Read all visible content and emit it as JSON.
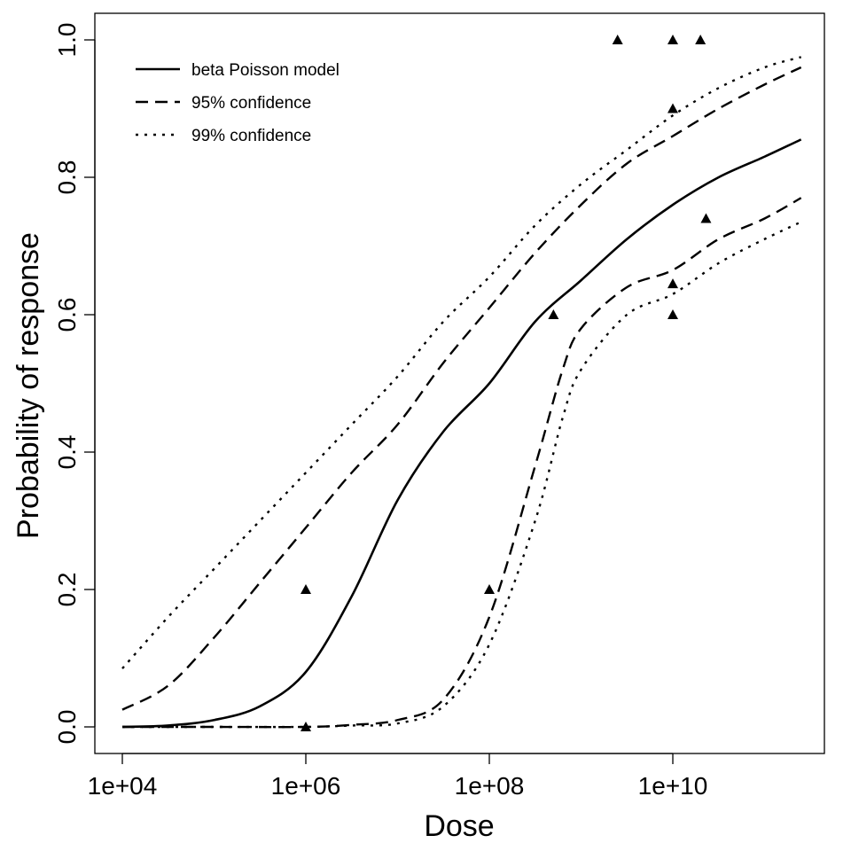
{
  "chart_data": {
    "type": "line",
    "title": "",
    "xlabel": "Dose",
    "ylabel": "Probability of response",
    "xscale": "log",
    "xlim": [
      5000,
      600000000000
    ],
    "ylim": [
      -0.04,
      1.04
    ],
    "xticks": [
      {
        "value": 10000.0,
        "label": "1e+04"
      },
      {
        "value": 1000000.0,
        "label": "1e+06"
      },
      {
        "value": 100000000.0,
        "label": "1e+08"
      },
      {
        "value": 10000000000.0,
        "label": "1e+10"
      }
    ],
    "yticks": [
      {
        "value": 0,
        "label": "0.0"
      },
      {
        "value": 0.2,
        "label": "0.2"
      },
      {
        "value": 0.4,
        "label": "0.4"
      },
      {
        "value": 0.6,
        "label": "0.6"
      },
      {
        "value": 0.8,
        "label": "0.8"
      },
      {
        "value": 1.0,
        "label": "1.0"
      }
    ],
    "grid": false,
    "legend_position": "top-left",
    "series": [
      {
        "name": "beta Poisson model",
        "style": "solid",
        "x": [
          10000.0,
          31600.0,
          100000.0,
          316000.0,
          1000000.0,
          3160000.0,
          10000000.0,
          31600000.0,
          100000000.0,
          316000000.0,
          1000000000.0,
          3160000000.0,
          10000000000.0,
          31600000000.0,
          100000000000.0,
          250000000000.0
        ],
        "y": [
          0.0,
          0.002,
          0.01,
          0.03,
          0.08,
          0.19,
          0.33,
          0.43,
          0.5,
          0.59,
          0.65,
          0.71,
          0.76,
          0.8,
          0.83,
          0.855
        ]
      },
      {
        "name": "95% confidence",
        "style": "dashed",
        "x": [
          10000.0,
          31600.0,
          100000.0,
          316000.0,
          1000000.0,
          3160000.0,
          10000000.0,
          31600000.0,
          100000000.0,
          316000000.0,
          1000000000.0,
          3160000000.0,
          10000000000.0,
          31600000000.0,
          100000000000.0,
          250000000000.0
        ],
        "y": [
          0.025,
          0.06,
          0.13,
          0.21,
          0.29,
          0.37,
          0.44,
          0.53,
          0.61,
          0.69,
          0.76,
          0.82,
          0.86,
          0.9,
          0.935,
          0.96
        ]
      },
      {
        "name": "95% confidence",
        "style": "dashed",
        "legend": false,
        "x": [
          10000.0,
          100000.0,
          1000000.0,
          3160000.0,
          10000000.0,
          31600000.0,
          100000000.0,
          316000000.0,
          630000000.0,
          1000000000.0,
          3160000000.0,
          10000000000.0,
          31600000000.0,
          100000000000.0,
          250000000000.0
        ],
        "y": [
          0.0,
          0.0,
          0.0,
          0.003,
          0.01,
          0.04,
          0.16,
          0.38,
          0.52,
          0.58,
          0.64,
          0.665,
          0.71,
          0.74,
          0.77
        ]
      },
      {
        "name": "99% confidence",
        "style": "dotted",
        "x": [
          10000.0,
          31600.0,
          100000.0,
          316000.0,
          1000000.0,
          3160000.0,
          10000000.0,
          31600000.0,
          100000000.0,
          316000000.0,
          1000000000.0,
          3160000000.0,
          10000000000.0,
          31600000000.0,
          100000000000.0,
          250000000000.0
        ],
        "y": [
          0.085,
          0.16,
          0.23,
          0.3,
          0.37,
          0.44,
          0.51,
          0.59,
          0.655,
          0.73,
          0.79,
          0.84,
          0.89,
          0.93,
          0.96,
          0.975
        ]
      },
      {
        "name": "99% confidence",
        "style": "dotted",
        "legend": false,
        "x": [
          10000.0,
          100000.0,
          1000000.0,
          3160000.0,
          10000000.0,
          31600000.0,
          100000000.0,
          316000000.0,
          630000000.0,
          1000000000.0,
          3160000000.0,
          10000000000.0,
          31600000000.0,
          100000000000.0,
          250000000000.0
        ],
        "y": [
          0.0,
          0.0,
          0.0,
          0.002,
          0.005,
          0.03,
          0.12,
          0.3,
          0.45,
          0.52,
          0.6,
          0.63,
          0.675,
          0.71,
          0.735
        ]
      }
    ],
    "points": {
      "marker": "triangle",
      "x": [
        1000000.0,
        1000000.0,
        100000000.0,
        500000000.0,
        2500000000.0,
        10000000000.0,
        20000000000.0,
        10000000000.0,
        23000000000.0,
        10000000000.0,
        10000000000.0
      ],
      "y": [
        0.2,
        0.0,
        0.2,
        0.6,
        1.0,
        1.0,
        1.0,
        0.9,
        0.74,
        0.645,
        0.6
      ]
    }
  }
}
